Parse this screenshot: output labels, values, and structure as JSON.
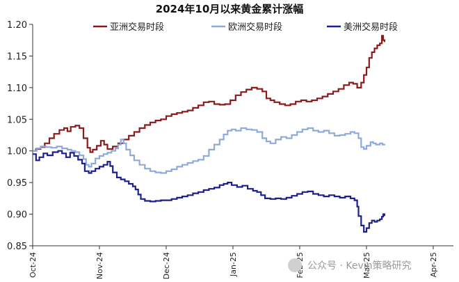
{
  "chart_data": {
    "type": "line",
    "title": "2024年10月以来黄金累计涨幅",
    "xlabel": "",
    "ylabel": "",
    "ylim": [
      0.85,
      1.2
    ],
    "yticks": [
      "0.85",
      "0.90",
      "0.95",
      "1.00",
      "1.05",
      "1.10",
      "1.15",
      "1.20"
    ],
    "x_ticks": [
      "Oct-24",
      "Nov-24",
      "Dec-24",
      "Jan-25",
      "Feb-25",
      "Mar-25",
      "Apr-25"
    ],
    "legend_position": "top",
    "grid": false,
    "series": [
      {
        "name": "亚洲交易时段",
        "color": "#8b1a1a",
        "points": [
          [
            0,
            1.0
          ],
          [
            0.05,
            1.003
          ],
          [
            0.12,
            1.006
          ],
          [
            0.18,
            1.012
          ],
          [
            0.25,
            1.02
          ],
          [
            0.32,
            1.027
          ],
          [
            0.4,
            1.033
          ],
          [
            0.47,
            1.036
          ],
          [
            0.52,
            1.031
          ],
          [
            0.57,
            1.038
          ],
          [
            0.64,
            1.04
          ],
          [
            0.7,
            1.036
          ],
          [
            0.76,
            1.02
          ],
          [
            0.82,
            1.005
          ],
          [
            0.86,
            0.998
          ],
          [
            0.9,
            1.002
          ],
          [
            0.96,
            1.008
          ],
          [
            1.02,
            1.016
          ],
          [
            1.07,
            1.01
          ],
          [
            1.12,
            1.003
          ],
          [
            1.2,
            1.007
          ],
          [
            1.28,
            1.012
          ],
          [
            1.36,
            1.018
          ],
          [
            1.44,
            1.024
          ],
          [
            1.52,
            1.03
          ],
          [
            1.6,
            1.036
          ],
          [
            1.68,
            1.041
          ],
          [
            1.76,
            1.045
          ],
          [
            1.84,
            1.048
          ],
          [
            1.92,
            1.05
          ],
          [
            2.0,
            1.055
          ],
          [
            2.08,
            1.058
          ],
          [
            2.16,
            1.06
          ],
          [
            2.24,
            1.062
          ],
          [
            2.32,
            1.064
          ],
          [
            2.4,
            1.068
          ],
          [
            2.48,
            1.072
          ],
          [
            2.56,
            1.077
          ],
          [
            2.64,
            1.078
          ],
          [
            2.72,
            1.074
          ],
          [
            2.8,
            1.073
          ],
          [
            2.88,
            1.074
          ],
          [
            2.96,
            1.08
          ],
          [
            3.04,
            1.088
          ],
          [
            3.12,
            1.093
          ],
          [
            3.2,
            1.097
          ],
          [
            3.28,
            1.1
          ],
          [
            3.36,
            1.098
          ],
          [
            3.44,
            1.094
          ],
          [
            3.5,
            1.083
          ],
          [
            3.56,
            1.08
          ],
          [
            3.62,
            1.077
          ],
          [
            3.7,
            1.074
          ],
          [
            3.78,
            1.072
          ],
          [
            3.86,
            1.074
          ],
          [
            3.94,
            1.078
          ],
          [
            4.02,
            1.08
          ],
          [
            4.1,
            1.078
          ],
          [
            4.18,
            1.08
          ],
          [
            4.26,
            1.083
          ],
          [
            4.34,
            1.086
          ],
          [
            4.42,
            1.09
          ],
          [
            4.5,
            1.094
          ],
          [
            4.58,
            1.098
          ],
          [
            4.66,
            1.104
          ],
          [
            4.74,
            1.108
          ],
          [
            4.8,
            1.106
          ],
          [
            4.86,
            1.1
          ],
          [
            4.92,
            1.108
          ],
          [
            4.96,
            1.12
          ],
          [
            5.0,
            1.132
          ],
          [
            5.04,
            1.147
          ],
          [
            5.08,
            1.156
          ],
          [
            5.12,
            1.162
          ],
          [
            5.16,
            1.167
          ],
          [
            5.2,
            1.17
          ],
          [
            5.23,
            1.182
          ],
          [
            5.25,
            1.175
          ],
          [
            5.27,
            1.172
          ]
        ]
      },
      {
        "name": "欧洲交易时段",
        "color": "#8eaadb",
        "points": [
          [
            0,
            1.0
          ],
          [
            0.06,
            1.004
          ],
          [
            0.12,
            1.007
          ],
          [
            0.2,
            1.006
          ],
          [
            0.28,
            1.005
          ],
          [
            0.36,
            1.007
          ],
          [
            0.44,
            1.004
          ],
          [
            0.52,
            1.002
          ],
          [
            0.58,
            1.0
          ],
          [
            0.64,
            0.998
          ],
          [
            0.7,
            0.993
          ],
          [
            0.76,
            0.987
          ],
          [
            0.8,
            0.978
          ],
          [
            0.84,
            0.975
          ],
          [
            0.88,
            0.98
          ],
          [
            0.94,
            0.988
          ],
          [
            1.0,
            0.992
          ],
          [
            1.06,
            0.995
          ],
          [
            1.12,
            0.997
          ],
          [
            1.18,
            1.0
          ],
          [
            1.24,
            1.004
          ],
          [
            1.28,
            1.01
          ],
          [
            1.32,
            1.018
          ],
          [
            1.36,
            1.012
          ],
          [
            1.4,
            1.002
          ],
          [
            1.46,
            0.993
          ],
          [
            1.52,
            0.985
          ],
          [
            1.6,
            0.978
          ],
          [
            1.68,
            0.972
          ],
          [
            1.76,
            0.968
          ],
          [
            1.84,
            0.966
          ],
          [
            1.92,
            0.965
          ],
          [
            2.0,
            0.968
          ],
          [
            2.08,
            0.971
          ],
          [
            2.16,
            0.975
          ],
          [
            2.24,
            0.978
          ],
          [
            2.32,
            0.981
          ],
          [
            2.4,
            0.984
          ],
          [
            2.48,
            0.986
          ],
          [
            2.56,
            0.992
          ],
          [
            2.64,
            1.002
          ],
          [
            2.72,
            1.01
          ],
          [
            2.8,
            1.018
          ],
          [
            2.86,
            1.026
          ],
          [
            2.92,
            1.032
          ],
          [
            2.98,
            1.034
          ],
          [
            3.04,
            1.032
          ],
          [
            3.12,
            1.036
          ],
          [
            3.2,
            1.034
          ],
          [
            3.28,
            1.033
          ],
          [
            3.36,
            1.03
          ],
          [
            3.44,
            1.02
          ],
          [
            3.5,
            1.015
          ],
          [
            3.56,
            1.012
          ],
          [
            3.64,
            1.018
          ],
          [
            3.72,
            1.022
          ],
          [
            3.8,
            1.02
          ],
          [
            3.88,
            1.025
          ],
          [
            3.96,
            1.03
          ],
          [
            4.04,
            1.034
          ],
          [
            4.12,
            1.036
          ],
          [
            4.2,
            1.032
          ],
          [
            4.28,
            1.03
          ],
          [
            4.36,
            1.032
          ],
          [
            4.44,
            1.028
          ],
          [
            4.52,
            1.024
          ],
          [
            4.6,
            1.025
          ],
          [
            4.68,
            1.027
          ],
          [
            4.76,
            1.03
          ],
          [
            4.82,
            1.028
          ],
          [
            4.88,
            1.02
          ],
          [
            4.92,
            1.006
          ],
          [
            4.96,
            1.003
          ],
          [
            5.0,
            1.008
          ],
          [
            5.06,
            1.014
          ],
          [
            5.1,
            1.012
          ],
          [
            5.14,
            1.01
          ],
          [
            5.2,
            1.012
          ],
          [
            5.24,
            1.01
          ],
          [
            5.27,
            1.011
          ]
        ]
      },
      {
        "name": "美洲交易时段",
        "color": "#1a1f8c",
        "points": [
          [
            0,
            0.995
          ],
          [
            0.05,
            0.985
          ],
          [
            0.1,
            0.99
          ],
          [
            0.16,
            0.996
          ],
          [
            0.22,
            0.993
          ],
          [
            0.3,
            0.998
          ],
          [
            0.38,
            1.0
          ],
          [
            0.44,
            0.996
          ],
          [
            0.5,
            0.99
          ],
          [
            0.56,
            0.997
          ],
          [
            0.62,
            0.992
          ],
          [
            0.68,
            0.986
          ],
          [
            0.74,
            0.98
          ],
          [
            0.78,
            0.968
          ],
          [
            0.84,
            0.965
          ],
          [
            0.88,
            0.968
          ],
          [
            0.94,
            0.972
          ],
          [
            1.0,
            0.975
          ],
          [
            1.06,
            0.978
          ],
          [
            1.12,
            0.983
          ],
          [
            1.16,
            0.976
          ],
          [
            1.2,
            0.966
          ],
          [
            1.26,
            0.958
          ],
          [
            1.32,
            0.955
          ],
          [
            1.38,
            0.952
          ],
          [
            1.44,
            0.948
          ],
          [
            1.5,
            0.944
          ],
          [
            1.54,
            0.939
          ],
          [
            1.58,
            0.931
          ],
          [
            1.62,
            0.924
          ],
          [
            1.68,
            0.921
          ],
          [
            1.76,
            0.92
          ],
          [
            1.84,
            0.921
          ],
          [
            1.92,
            0.922
          ],
          [
            2.0,
            0.922
          ],
          [
            2.08,
            0.924
          ],
          [
            2.16,
            0.926
          ],
          [
            2.24,
            0.928
          ],
          [
            2.32,
            0.93
          ],
          [
            2.4,
            0.933
          ],
          [
            2.48,
            0.935
          ],
          [
            2.56,
            0.938
          ],
          [
            2.64,
            0.94
          ],
          [
            2.72,
            0.942
          ],
          [
            2.8,
            0.946
          ],
          [
            2.86,
            0.948
          ],
          [
            2.92,
            0.95
          ],
          [
            2.98,
            0.946
          ],
          [
            3.06,
            0.943
          ],
          [
            3.14,
            0.945
          ],
          [
            3.22,
            0.94
          ],
          [
            3.3,
            0.937
          ],
          [
            3.36,
            0.935
          ],
          [
            3.42,
            0.93
          ],
          [
            3.48,
            0.925
          ],
          [
            3.56,
            0.924
          ],
          [
            3.64,
            0.925
          ],
          [
            3.72,
            0.924
          ],
          [
            3.8,
            0.926
          ],
          [
            3.88,
            0.929
          ],
          [
            3.96,
            0.932
          ],
          [
            4.04,
            0.935
          ],
          [
            4.12,
            0.936
          ],
          [
            4.2,
            0.932
          ],
          [
            4.28,
            0.93
          ],
          [
            4.36,
            0.928
          ],
          [
            4.44,
            0.93
          ],
          [
            4.52,
            0.928
          ],
          [
            4.6,
            0.926
          ],
          [
            4.68,
            0.928
          ],
          [
            4.76,
            0.925
          ],
          [
            4.82,
            0.922
          ],
          [
            4.86,
            0.912
          ],
          [
            4.88,
            0.897
          ],
          [
            4.92,
            0.882
          ],
          [
            4.96,
            0.872
          ],
          [
            5.0,
            0.878
          ],
          [
            5.04,
            0.886
          ],
          [
            5.08,
            0.89
          ],
          [
            5.12,
            0.888
          ],
          [
            5.16,
            0.89
          ],
          [
            5.2,
            0.892
          ],
          [
            5.23,
            0.896
          ],
          [
            5.25,
            0.9
          ],
          [
            5.27,
            0.897
          ]
        ]
      }
    ]
  },
  "watermark": {
    "text": "公众号 · Kevin策略研究"
  }
}
